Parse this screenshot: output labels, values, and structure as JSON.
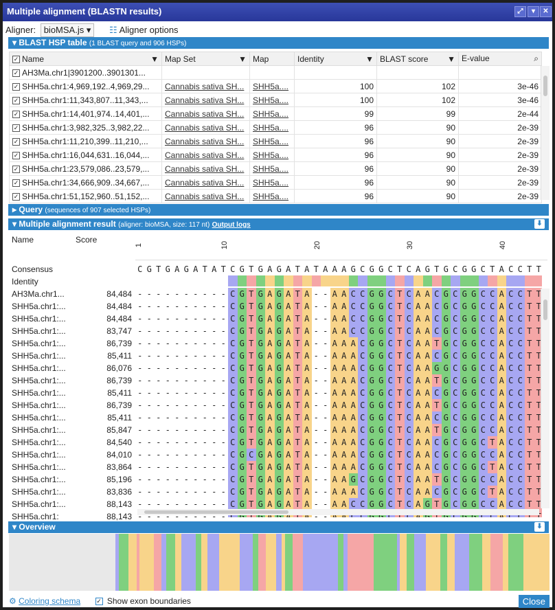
{
  "window": {
    "title": "Multiple alignment (BLASTN results)"
  },
  "toolbar": {
    "aligner_label": "Aligner:",
    "aligner_value": "bioMSA.js",
    "aligner_options": "Aligner options"
  },
  "hsp_panel": {
    "title": "BLAST HSP table",
    "subtitle": "(1 BLAST query and 906 HSPs)",
    "columns": [
      "Name",
      "Map Set",
      "Map",
      "Identity",
      "BLAST score",
      "E-value"
    ],
    "rows": [
      [
        "AH3Ma.chr1|3901200..3901301...",
        "",
        "",
        "",
        "",
        ""
      ],
      [
        "SHH5a.chr1:4,969,192..4,969,29...",
        "Cannabis sativa SH...",
        "SHH5a....",
        "100",
        "102",
        "3e-46"
      ],
      [
        "SHH5a.chr1:11,343,807..11,343,...",
        "Cannabis sativa SH...",
        "SHH5a....",
        "100",
        "102",
        "3e-46"
      ],
      [
        "SHH5a.chr1:14,401,974..14,401,...",
        "Cannabis sativa SH...",
        "SHH5a....",
        "99",
        "99",
        "2e-44"
      ],
      [
        "SHH5a.chr1:3,982,325..3,982,22...",
        "Cannabis sativa SH...",
        "SHH5a....",
        "96",
        "90",
        "2e-39"
      ],
      [
        "SHH5a.chr1:11,210,399..11,210,...",
        "Cannabis sativa SH...",
        "SHH5a....",
        "96",
        "90",
        "2e-39"
      ],
      [
        "SHH5a.chr1:16,044,631..16,044,...",
        "Cannabis sativa SH...",
        "SHH5a....",
        "96",
        "90",
        "2e-39"
      ],
      [
        "SHH5a.chr1:23,579,086..23,579,...",
        "Cannabis sativa SH...",
        "SHH5a....",
        "96",
        "90",
        "2e-39"
      ],
      [
        "SHH5a.chr1:34,666,909..34,667,...",
        "Cannabis sativa SH...",
        "SHH5a....",
        "96",
        "90",
        "2e-39"
      ],
      [
        "SHH5a.chr1:51,152,960..51,152,...",
        "Cannabis sativa SH...",
        "SHH5a....",
        "96",
        "90",
        "2e-39"
      ]
    ]
  },
  "query_panel": {
    "title": "Query",
    "subtitle": "(sequences of 907 selected HSPs)"
  },
  "msa_panel": {
    "title": "Multiple alignment result",
    "subtitle": "(aligner: bioMSA, size: 117 nt)",
    "output_logs": "Output logs",
    "col_name": "Name",
    "col_score": "Score",
    "consensus_label": "Consensus",
    "identity_label": "Identity",
    "ruler": [
      "1",
      "10",
      "20",
      "30",
      "40"
    ],
    "consensus": "CGTGAGATATCGTGAGATATAAAGCGGCTCAGTGCGGCTACCTTT",
    "rows": [
      {
        "name": "AH3Ma.chr1...",
        "score": "84,484",
        "seq": "----------CGTGAGATA--AACCGGCTCAACGCGGCCACCTT"
      },
      {
        "name": "SHH5a.chr1:...",
        "score": "84,484",
        "seq": "----------CGTGAGATA--AACCGGCTCAACGCGGCCACCTT"
      },
      {
        "name": "SHH5a.chr1:...",
        "score": "84,484",
        "seq": "----------CGTGAGATA--AACCGGCTCAACGCGGCCACCTT"
      },
      {
        "name": "SHH5a.chr1:...",
        "score": "83,747",
        "seq": "----------CGTGAGATA--AACCGGCTCAACGCGGCCACCTT"
      },
      {
        "name": "SHH5a.chr1:...",
        "score": "86,739",
        "seq": "----------CGTGAGATA--AAACGGCTCAATGCGGCCACCTT"
      },
      {
        "name": "SHH5a.chr1:...",
        "score": "85,411",
        "seq": "----------CGTGAGATA--AAACGGCTCAACGCGGCCACCTT"
      },
      {
        "name": "SHH5a.chr1:...",
        "score": "86,076",
        "seq": "----------CGTGAGATA--AAACGGCTCAAGGCGGCCACCTT"
      },
      {
        "name": "SHH5a.chr1:...",
        "score": "86,739",
        "seq": "----------CGTGAGATA--AAACGGCTCAATGCGGCCACCTT"
      },
      {
        "name": "SHH5a.chr1:...",
        "score": "85,411",
        "seq": "----------CGTGAGATA--AAACGGCTCAACGCGGCCACCTT"
      },
      {
        "name": "SHH5a.chr1:...",
        "score": "86,739",
        "seq": "----------CGTGAGATA--AAACGGCTCAATGCGGCCACCTT"
      },
      {
        "name": "SHH5a.chr1:...",
        "score": "85,411",
        "seq": "----------CGTGAGATA--AAACGGCTCAACGCGGCCACCTT"
      },
      {
        "name": "SHH5a.chr1:...",
        "score": "85,847",
        "seq": "----------CGTGAGATA--AAACGGCTCAATGCGGCCACCTT"
      },
      {
        "name": "SHH5a.chr1:...",
        "score": "84,540",
        "seq": "----------CGTGAGATA--AAACGGCTCAACGCGGCTACCTT"
      },
      {
        "name": "SHH5a.chr1:...",
        "score": "84,010",
        "seq": "----------CGCGAGATA--AAACGGCTCAACGCGGCCACCTT"
      },
      {
        "name": "SHH5a.chr1:...",
        "score": "83,864",
        "seq": "----------CGTGAGATA--AAACGGCTCAACGCGGCTACCTT"
      },
      {
        "name": "SHH5a.chr1:...",
        "score": "85,196",
        "seq": "----------CGTGAGATA--AAGCGGCTCAATGCGGCCACCTT"
      },
      {
        "name": "SHH5a.chr1:...",
        "score": "83,836",
        "seq": "----------CGTGAGATA--AAACGGCTCAACGCGGCTACCTT"
      },
      {
        "name": "SHH5a.chr1:...",
        "score": "88,143",
        "seq": "----------CGTGAGATA--AACCGGCTCAGTGCGGCCACCTT"
      },
      {
        "name": "SHH5a.chr1:",
        "score": "88,143",
        "seq": "----------CGTGAGATA--AACCGGCTCAGTGCGGCCACCTT"
      }
    ],
    "colors": {
      "A": "#f8d48a",
      "C": "#a7a7f2",
      "G": "#7fd07f",
      "T": "#f5a6a6"
    }
  },
  "overview_panel": {
    "title": "Overview"
  },
  "footer": {
    "coloring_schema": "Coloring schema",
    "exon_boundaries": "Show exon boundaries",
    "close": "Close"
  }
}
